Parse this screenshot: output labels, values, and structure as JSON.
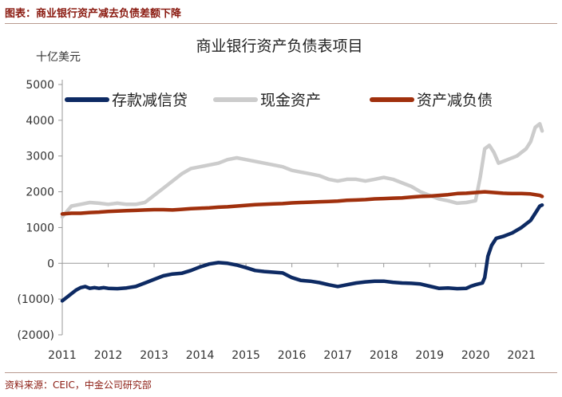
{
  "figure": {
    "caption": "图表：商业银行资产减去负债差额下降",
    "source": "资料来源：CEIC，中金公司研究部"
  },
  "chart_data": {
    "type": "line",
    "title": "商业银行资产负债表项目",
    "unit_label": "十亿美元",
    "xlabel": "",
    "ylabel": "",
    "xlim": [
      2011,
      2021.5
    ],
    "ylim": [
      -2000,
      5000
    ],
    "x_ticks": [
      "2011",
      "2012",
      "2013",
      "2014",
      "2015",
      "2016",
      "2017",
      "2018",
      "2019",
      "2020",
      "2021"
    ],
    "y_ticks": [
      "5000",
      "4000",
      "3000",
      "2000",
      "1000",
      "0",
      "(1000)",
      "(2000)"
    ],
    "legend_position": "top",
    "series": [
      {
        "name": "存款减信贷",
        "color": "#0d2a63",
        "points": [
          [
            2011.0,
            -1050
          ],
          [
            2011.1,
            -950
          ],
          [
            2011.2,
            -850
          ],
          [
            2011.3,
            -750
          ],
          [
            2011.4,
            -680
          ],
          [
            2011.5,
            -650
          ],
          [
            2011.6,
            -700
          ],
          [
            2011.7,
            -680
          ],
          [
            2011.8,
            -700
          ],
          [
            2011.9,
            -680
          ],
          [
            2012.0,
            -700
          ],
          [
            2012.2,
            -710
          ],
          [
            2012.4,
            -690
          ],
          [
            2012.6,
            -650
          ],
          [
            2012.8,
            -550
          ],
          [
            2013.0,
            -450
          ],
          [
            2013.2,
            -350
          ],
          [
            2013.4,
            -300
          ],
          [
            2013.6,
            -280
          ],
          [
            2013.8,
            -200
          ],
          [
            2014.0,
            -100
          ],
          [
            2014.2,
            -20
          ],
          [
            2014.4,
            20
          ],
          [
            2014.6,
            0
          ],
          [
            2014.8,
            -50
          ],
          [
            2015.0,
            -120
          ],
          [
            2015.2,
            -200
          ],
          [
            2015.4,
            -230
          ],
          [
            2015.6,
            -250
          ],
          [
            2015.8,
            -270
          ],
          [
            2016.0,
            -400
          ],
          [
            2016.2,
            -480
          ],
          [
            2016.4,
            -500
          ],
          [
            2016.6,
            -540
          ],
          [
            2016.8,
            -600
          ],
          [
            2017.0,
            -650
          ],
          [
            2017.2,
            -600
          ],
          [
            2017.4,
            -550
          ],
          [
            2017.6,
            -520
          ],
          [
            2017.8,
            -500
          ],
          [
            2018.0,
            -500
          ],
          [
            2018.2,
            -530
          ],
          [
            2018.4,
            -550
          ],
          [
            2018.6,
            -560
          ],
          [
            2018.8,
            -580
          ],
          [
            2019.0,
            -640
          ],
          [
            2019.2,
            -700
          ],
          [
            2019.4,
            -690
          ],
          [
            2019.6,
            -710
          ],
          [
            2019.8,
            -700
          ],
          [
            2019.9,
            -640
          ],
          [
            2020.0,
            -600
          ],
          [
            2020.15,
            -550
          ],
          [
            2020.2,
            -400
          ],
          [
            2020.27,
            200
          ],
          [
            2020.35,
            500
          ],
          [
            2020.45,
            700
          ],
          [
            2020.6,
            750
          ],
          [
            2020.8,
            850
          ],
          [
            2021.0,
            1000
          ],
          [
            2021.2,
            1200
          ],
          [
            2021.3,
            1400
          ],
          [
            2021.4,
            1600
          ],
          [
            2021.45,
            1630
          ]
        ]
      },
      {
        "name": "现金资产",
        "color": "#cccccc",
        "points": [
          [
            2011.0,
            1300
          ],
          [
            2011.1,
            1450
          ],
          [
            2011.2,
            1600
          ],
          [
            2011.4,
            1650
          ],
          [
            2011.6,
            1700
          ],
          [
            2011.8,
            1680
          ],
          [
            2012.0,
            1650
          ],
          [
            2012.2,
            1680
          ],
          [
            2012.4,
            1650
          ],
          [
            2012.6,
            1650
          ],
          [
            2012.8,
            1700
          ],
          [
            2013.0,
            1900
          ],
          [
            2013.2,
            2100
          ],
          [
            2013.4,
            2300
          ],
          [
            2013.6,
            2500
          ],
          [
            2013.8,
            2650
          ],
          [
            2014.0,
            2700
          ],
          [
            2014.2,
            2750
          ],
          [
            2014.4,
            2800
          ],
          [
            2014.6,
            2900
          ],
          [
            2014.8,
            2950
          ],
          [
            2015.0,
            2900
          ],
          [
            2015.2,
            2850
          ],
          [
            2015.4,
            2800
          ],
          [
            2015.6,
            2750
          ],
          [
            2015.8,
            2700
          ],
          [
            2016.0,
            2600
          ],
          [
            2016.2,
            2550
          ],
          [
            2016.4,
            2500
          ],
          [
            2016.6,
            2450
          ],
          [
            2016.8,
            2350
          ],
          [
            2017.0,
            2300
          ],
          [
            2017.2,
            2350
          ],
          [
            2017.4,
            2350
          ],
          [
            2017.6,
            2300
          ],
          [
            2017.8,
            2350
          ],
          [
            2018.0,
            2400
          ],
          [
            2018.2,
            2350
          ],
          [
            2018.4,
            2250
          ],
          [
            2018.6,
            2150
          ],
          [
            2018.8,
            2000
          ],
          [
            2019.0,
            1900
          ],
          [
            2019.2,
            1800
          ],
          [
            2019.4,
            1750
          ],
          [
            2019.6,
            1680
          ],
          [
            2019.8,
            1700
          ],
          [
            2020.0,
            1750
          ],
          [
            2020.1,
            2400
          ],
          [
            2020.2,
            3200
          ],
          [
            2020.3,
            3300
          ],
          [
            2020.4,
            3100
          ],
          [
            2020.5,
            2800
          ],
          [
            2020.7,
            2900
          ],
          [
            2020.9,
            3000
          ],
          [
            2021.0,
            3100
          ],
          [
            2021.1,
            3200
          ],
          [
            2021.2,
            3400
          ],
          [
            2021.3,
            3800
          ],
          [
            2021.4,
            3900
          ],
          [
            2021.45,
            3700
          ]
        ]
      },
      {
        "name": "资产减负债",
        "color": "#a0300d",
        "points": [
          [
            2011.0,
            1380
          ],
          [
            2011.2,
            1400
          ],
          [
            2011.4,
            1400
          ],
          [
            2011.6,
            1420
          ],
          [
            2011.8,
            1430
          ],
          [
            2012.0,
            1450
          ],
          [
            2012.2,
            1460
          ],
          [
            2012.4,
            1470
          ],
          [
            2012.6,
            1480
          ],
          [
            2012.8,
            1490
          ],
          [
            2013.0,
            1500
          ],
          [
            2013.2,
            1500
          ],
          [
            2013.4,
            1490
          ],
          [
            2013.6,
            1510
          ],
          [
            2013.8,
            1530
          ],
          [
            2014.0,
            1540
          ],
          [
            2014.2,
            1550
          ],
          [
            2014.4,
            1570
          ],
          [
            2014.6,
            1580
          ],
          [
            2014.8,
            1600
          ],
          [
            2015.0,
            1620
          ],
          [
            2015.2,
            1640
          ],
          [
            2015.4,
            1650
          ],
          [
            2015.6,
            1660
          ],
          [
            2015.8,
            1670
          ],
          [
            2016.0,
            1690
          ],
          [
            2016.2,
            1700
          ],
          [
            2016.4,
            1710
          ],
          [
            2016.6,
            1720
          ],
          [
            2016.8,
            1730
          ],
          [
            2017.0,
            1740
          ],
          [
            2017.2,
            1760
          ],
          [
            2017.4,
            1770
          ],
          [
            2017.6,
            1780
          ],
          [
            2017.8,
            1800
          ],
          [
            2018.0,
            1810
          ],
          [
            2018.2,
            1820
          ],
          [
            2018.4,
            1830
          ],
          [
            2018.6,
            1850
          ],
          [
            2018.8,
            1870
          ],
          [
            2019.0,
            1880
          ],
          [
            2019.2,
            1900
          ],
          [
            2019.4,
            1920
          ],
          [
            2019.6,
            1950
          ],
          [
            2019.8,
            1960
          ],
          [
            2020.0,
            1980
          ],
          [
            2020.2,
            2000
          ],
          [
            2020.4,
            1980
          ],
          [
            2020.6,
            1960
          ],
          [
            2020.8,
            1950
          ],
          [
            2021.0,
            1950
          ],
          [
            2021.2,
            1940
          ],
          [
            2021.4,
            1900
          ],
          [
            2021.45,
            1870
          ]
        ]
      }
    ]
  }
}
